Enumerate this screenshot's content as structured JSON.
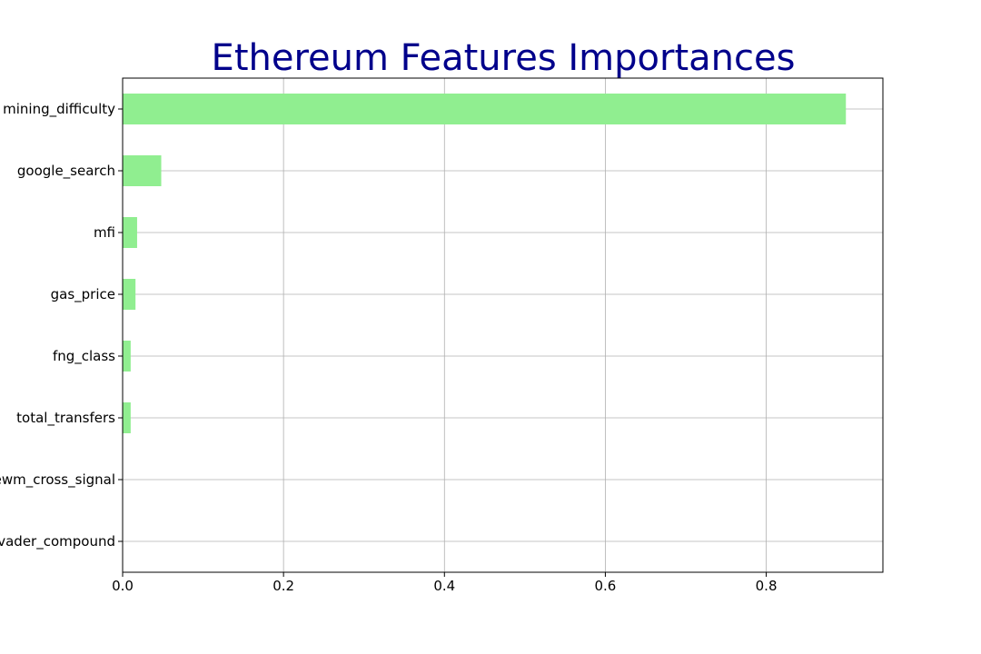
{
  "chart_data": {
    "type": "bar",
    "orientation": "horizontal",
    "title": "Ethereum Features Importances",
    "xlabel": "",
    "ylabel": "",
    "categories": [
      "mining_difficulty",
      "google_search",
      "mfi",
      "gas_price",
      "fng_class",
      "total_transfers",
      "ewm_cross_signal",
      "vader_compound"
    ],
    "values": [
      0.899,
      0.048,
      0.018,
      0.016,
      0.01,
      0.01,
      0.0,
      0.0
    ],
    "xlim": [
      0,
      0.945
    ],
    "xticks": [
      0.0,
      0.2,
      0.4,
      0.6,
      0.8
    ],
    "xtick_labels": [
      "0.0",
      "0.2",
      "0.4",
      "0.6",
      "0.8"
    ],
    "grid": true,
    "legend": "none",
    "bar_color": "#90ee90",
    "title_color": "#00008b"
  }
}
